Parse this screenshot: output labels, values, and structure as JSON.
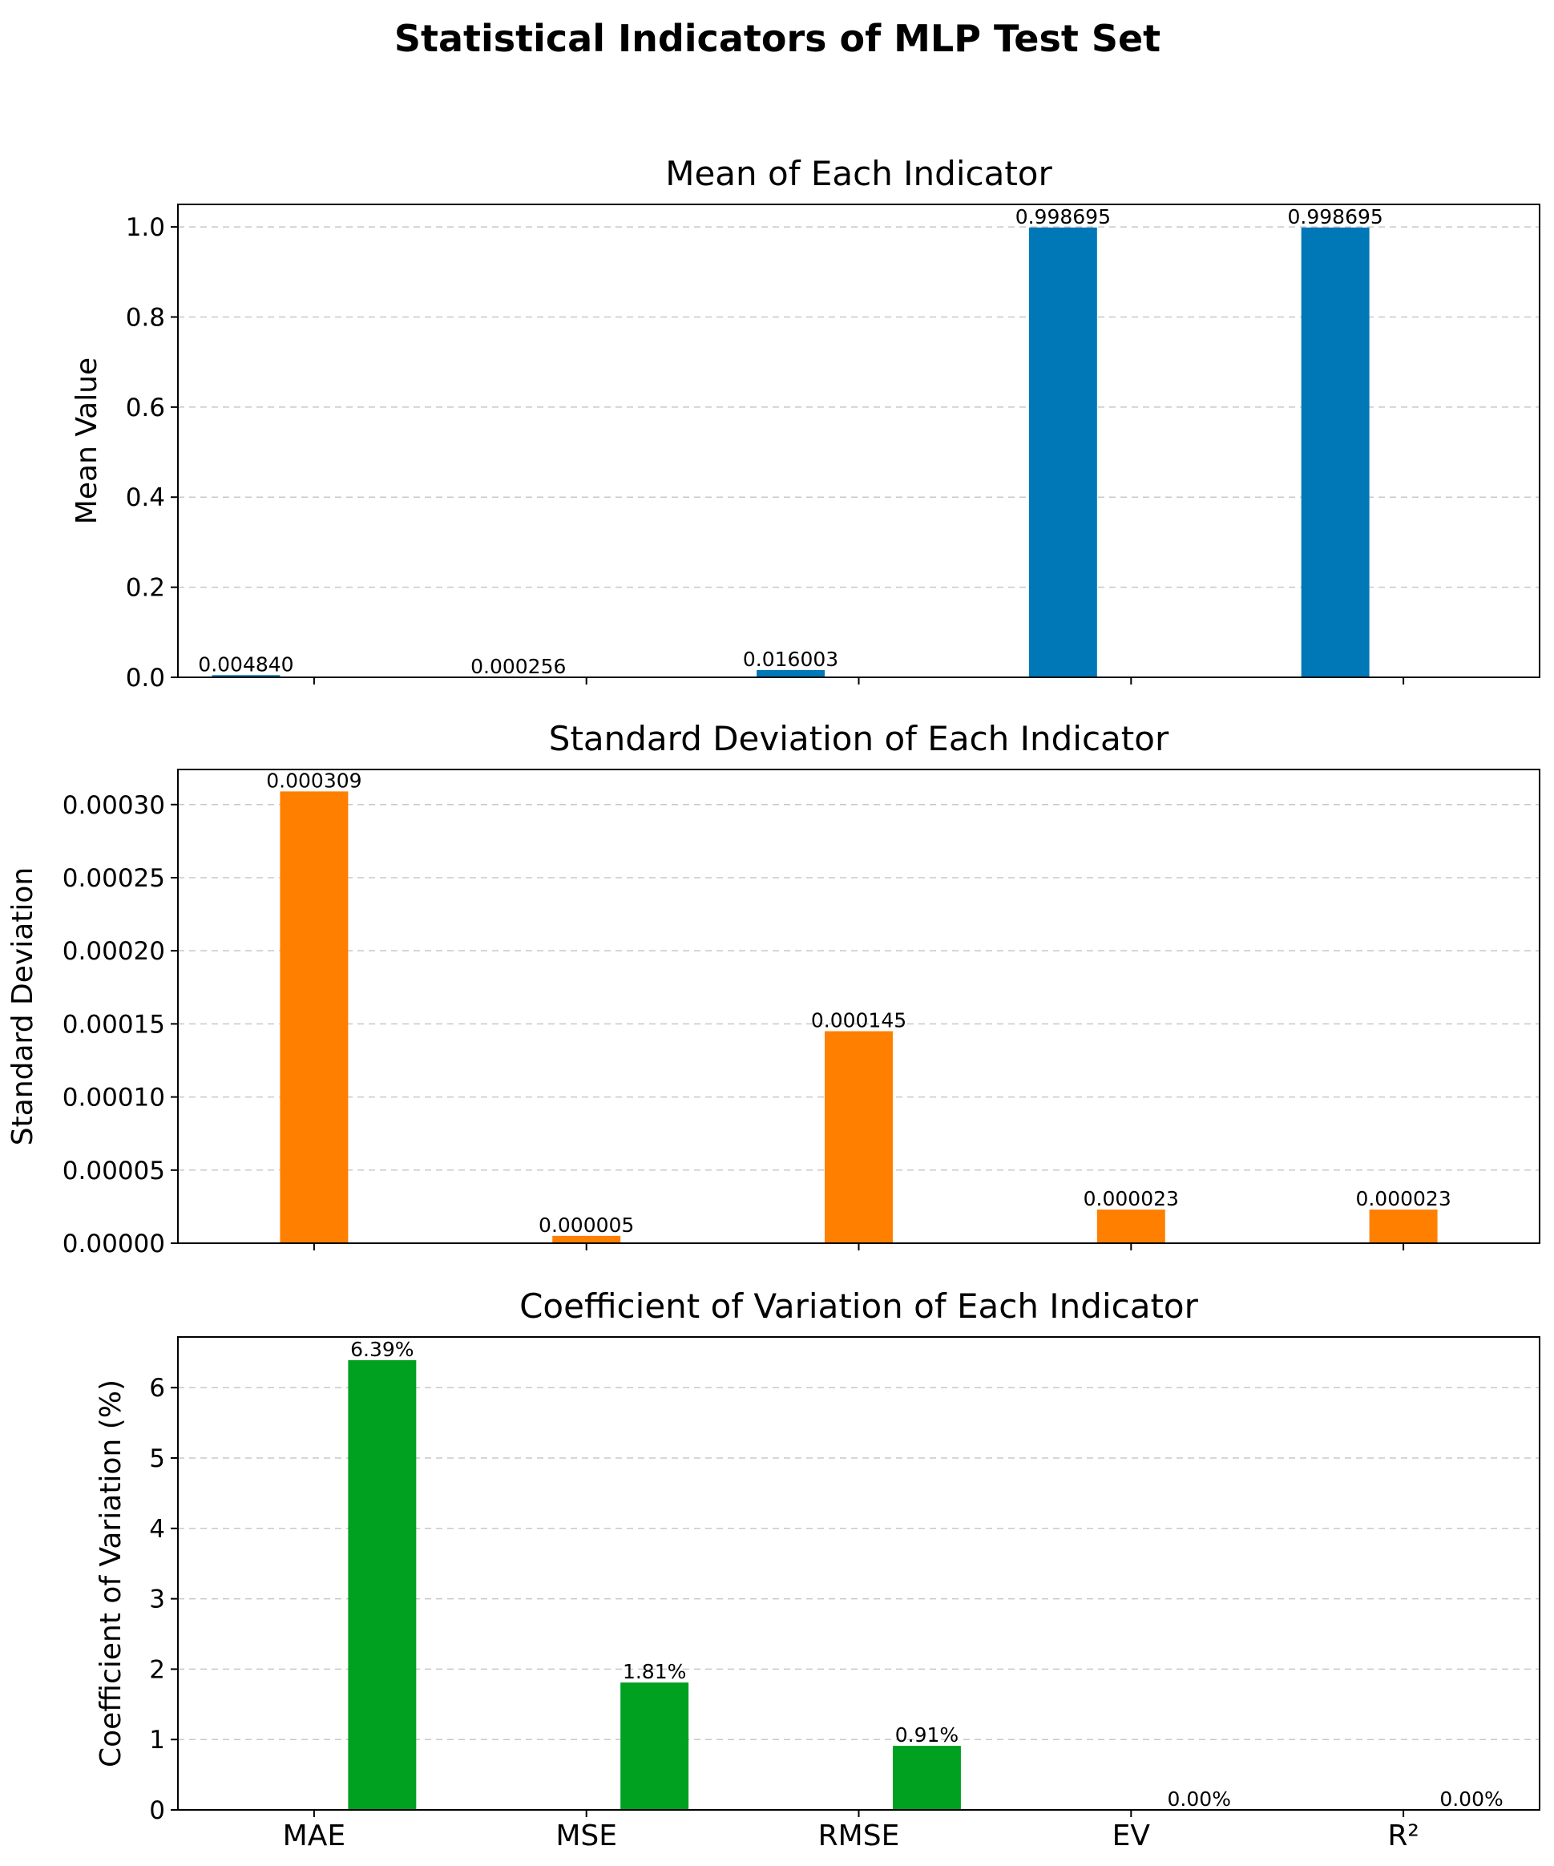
{
  "figure": {
    "title": "Statistical Indicators of MLP Test Set"
  },
  "chart_data": [
    {
      "type": "bar",
      "title": "Mean of Each Indicator",
      "xlabel": "",
      "ylabel": "Mean Value",
      "categories": [
        "MAE",
        "MSE",
        "RMSE",
        "EV",
        "R²"
      ],
      "values": [
        0.00484,
        0.000256,
        0.016003,
        0.998695,
        0.998695
      ],
      "value_labels": [
        "0.004840",
        "0.000256",
        "0.016003",
        "0.998695",
        "0.998695"
      ],
      "color": "#0077b6",
      "bar_offset": -0.25,
      "ylim": [
        0,
        1.05
      ],
      "yticks": [
        0.0,
        0.2,
        0.4,
        0.6,
        0.8,
        1.0
      ],
      "ytick_labels": [
        "0.0",
        "0.2",
        "0.4",
        "0.6",
        "0.8",
        "1.0"
      ],
      "grid": true,
      "show_xtick_labels": false
    },
    {
      "type": "bar",
      "title": "Standard Deviation of Each Indicator",
      "xlabel": "",
      "ylabel": "Standard Deviation",
      "categories": [
        "MAE",
        "MSE",
        "RMSE",
        "EV",
        "R²"
      ],
      "values": [
        0.000309,
        5e-06,
        0.000145,
        2.3e-05,
        2.3e-05
      ],
      "value_labels": [
        "0.000309",
        "0.000005",
        "0.000145",
        "0.000023",
        "0.000023"
      ],
      "color": "#ff7f00",
      "bar_offset": 0.0,
      "ylim": [
        0,
        0.000324
      ],
      "yticks": [
        0,
        5e-05,
        0.0001,
        0.00015,
        0.0002,
        0.00025,
        0.0003
      ],
      "ytick_labels": [
        "0.00000",
        "0.00005",
        "0.00010",
        "0.00015",
        "0.00020",
        "0.00025",
        "0.00030"
      ],
      "grid": true,
      "show_xtick_labels": false
    },
    {
      "type": "bar",
      "title": "Coefficient of Variation of Each Indicator",
      "xlabel": "",
      "ylabel": "Coefficient of Variation (%)",
      "categories": [
        "MAE",
        "MSE",
        "RMSE",
        "EV",
        "R²"
      ],
      "values": [
        6.39,
        1.81,
        0.91,
        0.0,
        0.0
      ],
      "value_labels": [
        "6.39%",
        "1.81%",
        "0.91%",
        "0.00%",
        "0.00%"
      ],
      "color": "#00a020",
      "bar_offset": 0.25,
      "ylim": [
        0,
        6.72
      ],
      "yticks": [
        0,
        1,
        2,
        3,
        4,
        5,
        6
      ],
      "ytick_labels": [
        "0",
        "1",
        "2",
        "3",
        "4",
        "5",
        "6"
      ],
      "grid": true,
      "show_xtick_labels": true
    }
  ]
}
